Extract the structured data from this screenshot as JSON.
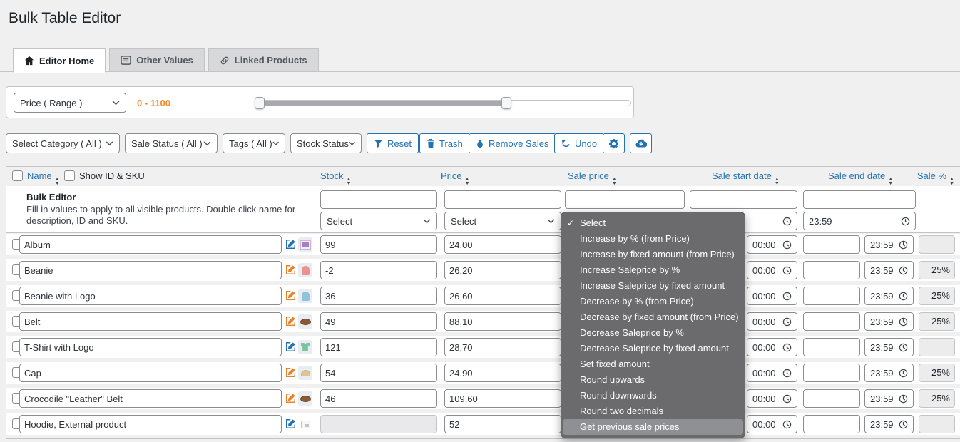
{
  "page": {
    "title": "Bulk Table Editor"
  },
  "tabs": {
    "editor_home": "Editor Home",
    "other_values": "Other Values",
    "linked_products": "Linked Products"
  },
  "range_panel": {
    "selector_value": "Price ( Range )",
    "range_label": "0 - 1100",
    "slider": {
      "low_pct": 0,
      "high_pct": 67
    }
  },
  "filters": {
    "category": "Select Category ( All )",
    "sale_status": "Sale Status ( All )",
    "tags": "Tags ( All )",
    "stock_status": "Stock Status"
  },
  "actions": {
    "reset": "Reset",
    "trash": "Trash",
    "remove_sales": "Remove Sales",
    "undo": "Undo"
  },
  "table": {
    "headers": {
      "name": "Name",
      "show_id_sku": "Show ID & SKU",
      "stock": "Stock",
      "price": "Price",
      "sale_price": "Sale price",
      "sale_start_date": "Sale start date",
      "sale_end_date": "Sale end date",
      "sale_pct": "Sale %"
    },
    "bulk": {
      "title": "Bulk Editor",
      "description": "Fill in values to apply to all visible products. Double click name for description, ID and SKU.",
      "stock_select": "Select",
      "price_select": "Select",
      "start_time": "",
      "end_time": "23:59"
    },
    "rows": [
      {
        "name": "Album",
        "stock": "99",
        "price": "24,00",
        "sale_price": "",
        "start_time": "00:00",
        "end_time": "23:59",
        "sale_pct": "",
        "edit_color": "blue",
        "thumb": "album"
      },
      {
        "name": "Beanie",
        "stock": "-2",
        "price": "26,20",
        "sale_price": "",
        "start_time": "00:00",
        "end_time": "23:59",
        "sale_pct": "25%",
        "edit_color": "orange",
        "thumb": "beanie-red"
      },
      {
        "name": "Beanie with Logo",
        "stock": "36",
        "price": "26,60",
        "sale_price": "",
        "start_time": "00:00",
        "end_time": "23:59",
        "sale_pct": "25%",
        "edit_color": "orange",
        "thumb": "beanie-blue"
      },
      {
        "name": "Belt",
        "stock": "49",
        "price": "88,10",
        "sale_price": "",
        "start_time": "00:00",
        "end_time": "23:59",
        "sale_pct": "25%",
        "edit_color": "orange",
        "thumb": "belt"
      },
      {
        "name": "T-Shirt with Logo",
        "stock": "121",
        "price": "28,70",
        "sale_price": "",
        "start_time": "00:00",
        "end_time": "23:59",
        "sale_pct": "",
        "edit_color": "blue",
        "thumb": "tshirt"
      },
      {
        "name": "Cap",
        "stock": "54",
        "price": "24,90",
        "sale_price": "",
        "start_time": "00:00",
        "end_time": "23:59",
        "sale_pct": "25%",
        "edit_color": "orange",
        "thumb": "cap"
      },
      {
        "name": "Crocodile \"Leather\" Belt",
        "stock": "46",
        "price": "109,60",
        "sale_price": "",
        "start_time": "00:00",
        "end_time": "23:59",
        "sale_pct": "25%",
        "edit_color": "orange",
        "thumb": "belt"
      },
      {
        "name": "Hoodie, External product",
        "stock": null,
        "price": "52",
        "sale_price": "",
        "start_time": "00:00",
        "end_time": "23:59",
        "sale_pct": "",
        "edit_color": "blue",
        "thumb": "placeholder"
      }
    ]
  },
  "dropdown": {
    "selected_index": 0,
    "highlighted_index": 13,
    "items": [
      "Select",
      "Increase by % (from Price)",
      "Increase by fixed amount (from Price)",
      "Increase Saleprice by %",
      "Increase Saleprice by fixed amount",
      "Decrease by % (from Price)",
      "Decrease by fixed amount (from Price)",
      "Decrease Saleprice by %",
      "Decrease Saleprice by fixed amount",
      "Set fixed amount",
      "Round upwards",
      "Round downwards",
      "Round two decimals",
      "Get previous sale prices"
    ]
  },
  "colors": {
    "accent_blue": "#2271b1",
    "orange": "#ef8a2c",
    "menu_bg": "#6b6b6e",
    "menu_highlight": "#8f9093"
  }
}
